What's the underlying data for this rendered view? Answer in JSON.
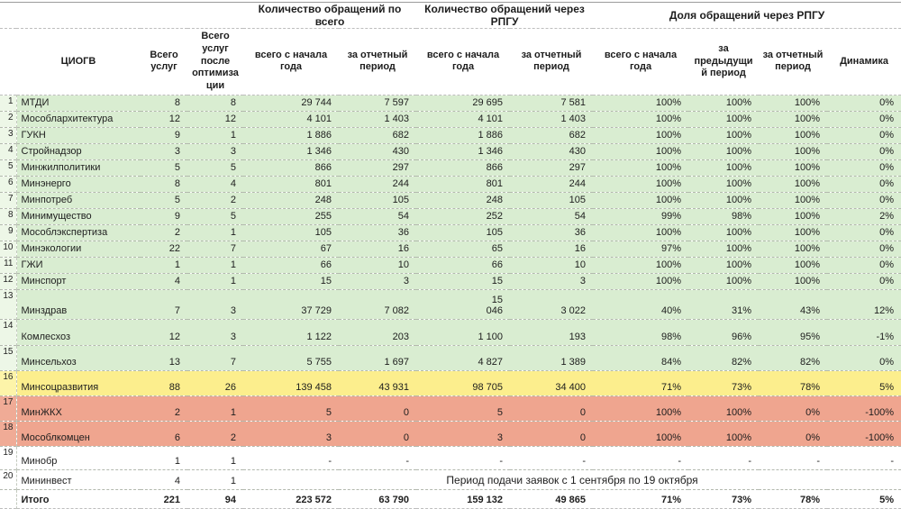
{
  "colors": {
    "green": "#d9edd1",
    "green_gutter": "#edf7e7",
    "yellow": "#fcee8d",
    "yellow_gutter": "#fdf4a9",
    "red": "#efa58f",
    "red_gutter": "#f0ab96",
    "white": "#ffffff"
  },
  "table": {
    "group_headers": {
      "total": "Количество обращений по всего",
      "rpgu": "Количество обращений через РПГУ",
      "share": "Доля обращений через РПГУ"
    },
    "column_headers": {
      "ciogv": "ЦИОГВ",
      "total_services": "Всего услуг",
      "services_after_opt": "Всего услуг после оптимиза ции",
      "total_year": "всего с начала года",
      "total_period": "за отчетный период",
      "rpgu_year": "всего с начала года",
      "rpgu_period": "за отчетный период",
      "share_year": "всего с начала года",
      "share_prev": "за предыдущи й период",
      "share_period": "за отчетный период",
      "dynamics": "Динамика"
    },
    "rows": [
      {
        "num": "1",
        "name": "МТДИ",
        "color": "green",
        "values": [
          "8",
          "8",
          "29 744",
          "7 597",
          "29 695",
          "7 581",
          "100%",
          "100%",
          "100%",
          "0%"
        ]
      },
      {
        "num": "2",
        "name": "Мособлархитектура",
        "color": "green",
        "values": [
          "12",
          "12",
          "4 101",
          "1 403",
          "4 101",
          "1 403",
          "100%",
          "100%",
          "100%",
          "0%"
        ]
      },
      {
        "num": "3",
        "name": "ГУКН",
        "color": "green",
        "values": [
          "9",
          "1",
          "1 886",
          "682",
          "1 886",
          "682",
          "100%",
          "100%",
          "100%",
          "0%"
        ]
      },
      {
        "num": "4",
        "name": "Стройнадзор",
        "color": "green",
        "values": [
          "3",
          "3",
          "1 346",
          "430",
          "1 346",
          "430",
          "100%",
          "100%",
          "100%",
          "0%"
        ]
      },
      {
        "num": "5",
        "name": "Минжилполитики",
        "color": "green",
        "values": [
          "5",
          "5",
          "866",
          "297",
          "866",
          "297",
          "100%",
          "100%",
          "100%",
          "0%"
        ]
      },
      {
        "num": "6",
        "name": "Минэнерго",
        "color": "green",
        "values": [
          "8",
          "4",
          "801",
          "244",
          "801",
          "244",
          "100%",
          "100%",
          "100%",
          "0%"
        ]
      },
      {
        "num": "7",
        "name": "Минпотреб",
        "color": "green",
        "values": [
          "5",
          "2",
          "248",
          "105",
          "248",
          "105",
          "100%",
          "100%",
          "100%",
          "0%"
        ]
      },
      {
        "num": "8",
        "name": "Минимущество",
        "color": "green",
        "values": [
          "9",
          "5",
          "255",
          "54",
          "252",
          "54",
          "99%",
          "98%",
          "100%",
          "2%"
        ]
      },
      {
        "num": "9",
        "name": "Мособлэкспертиза",
        "color": "green",
        "values": [
          "2",
          "1",
          "105",
          "36",
          "105",
          "36",
          "100%",
          "100%",
          "100%",
          "0%"
        ]
      },
      {
        "num": "10",
        "name": "Минэкологии",
        "color": "green",
        "values": [
          "22",
          "7",
          "67",
          "16",
          "65",
          "16",
          "97%",
          "100%",
          "100%",
          "0%"
        ]
      },
      {
        "num": "11",
        "name": "ГЖИ",
        "color": "green",
        "values": [
          "1",
          "1",
          "66",
          "10",
          "66",
          "10",
          "100%",
          "100%",
          "100%",
          "0%"
        ]
      },
      {
        "num": "12",
        "name": "Минспорт",
        "color": "green",
        "values": [
          "4",
          "1",
          "15",
          "3",
          "15",
          "3",
          "100%",
          "100%",
          "100%",
          "0%"
        ]
      },
      {
        "num": "13",
        "name": "Минздрав",
        "color": "green",
        "values": [
          "7",
          "3",
          "37 729",
          "7 082",
          "15\n046",
          "3 022",
          "40%",
          "31%",
          "43%",
          "12%"
        ]
      },
      {
        "num": "14",
        "name": "Комлесхоз",
        "color": "green",
        "values": [
          "12",
          "3",
          "1 122",
          "203",
          "1 100",
          "193",
          "98%",
          "96%",
          "95%",
          "-1%"
        ]
      },
      {
        "num": "15",
        "name": "Минсельхоз",
        "color": "green",
        "values": [
          "13",
          "7",
          "5 755",
          "1 697",
          "4 827",
          "1 389",
          "84%",
          "82%",
          "82%",
          "0%"
        ]
      },
      {
        "num": "16",
        "name": "Минсоцразвития",
        "color": "yellow",
        "values": [
          "88",
          "26",
          "139 458",
          "43 931",
          "98 705",
          "34 400",
          "71%",
          "73%",
          "78%",
          "5%"
        ]
      },
      {
        "num": "17",
        "name": "МинЖКХ",
        "color": "red",
        "values": [
          "2",
          "1",
          "5",
          "0",
          "5",
          "0",
          "100%",
          "100%",
          "0%",
          "-100%"
        ]
      },
      {
        "num": "18",
        "name": "Мособлкомцен",
        "color": "red",
        "values": [
          "6",
          "2",
          "3",
          "0",
          "3",
          "0",
          "100%",
          "100%",
          "0%",
          "-100%"
        ]
      },
      {
        "num": "19",
        "name": "Минобр",
        "color": "white",
        "values": [
          "1",
          "1",
          "-",
          "-",
          "-",
          "-",
          "-",
          "-",
          "-",
          "-"
        ]
      },
      {
        "num": "20",
        "name": "Мининвест",
        "color": "white",
        "values": [
          "4",
          "1"
        ],
        "note": "Период подачи заявок с 1 сентября по 19 октября"
      }
    ],
    "totals": {
      "label": "Итого",
      "values": [
        "221",
        "94",
        "223 572",
        "63 790",
        "159 132",
        "49 865",
        "71%",
        "73%",
        "78%",
        "5%"
      ]
    }
  }
}
